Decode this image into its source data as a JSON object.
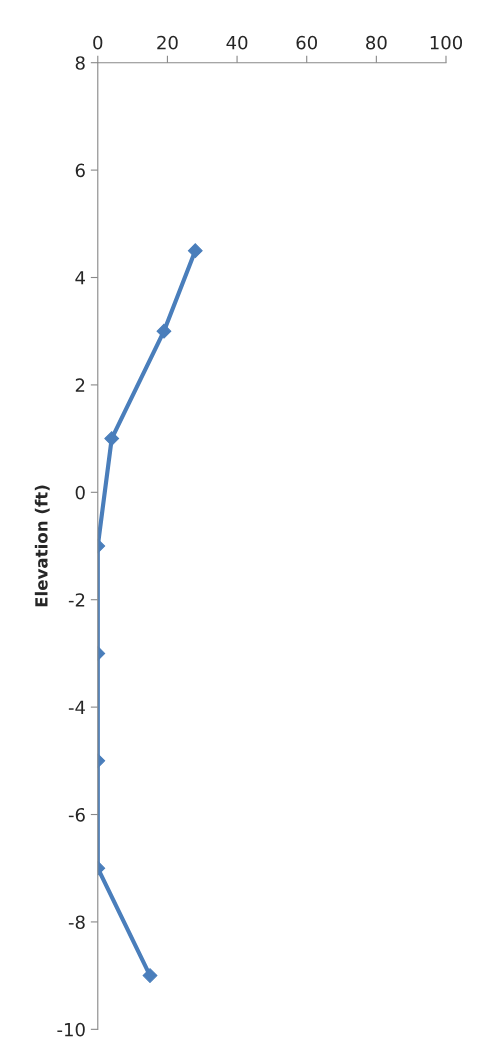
{
  "chart_data": {
    "type": "line",
    "ylabel": "Elevation (ft)",
    "x": [
      28,
      19,
      4,
      0,
      0,
      0,
      0,
      15
    ],
    "series": [
      {
        "color": "#4a7ebb",
        "values": [
          4.5,
          3,
          1,
          -1,
          -3,
          -5,
          -7,
          -9
        ]
      }
    ],
    "xlim": [
      0,
      100
    ],
    "xticks": [
      0,
      20,
      40,
      60,
      80,
      100
    ],
    "ylim": [
      -10,
      8
    ],
    "yticks": [
      -10,
      -8,
      -6,
      -4,
      -2,
      0,
      2,
      4,
      6,
      8
    ],
    "grid": false,
    "legend": false,
    "marker": "diamond",
    "line_style": "solid"
  }
}
